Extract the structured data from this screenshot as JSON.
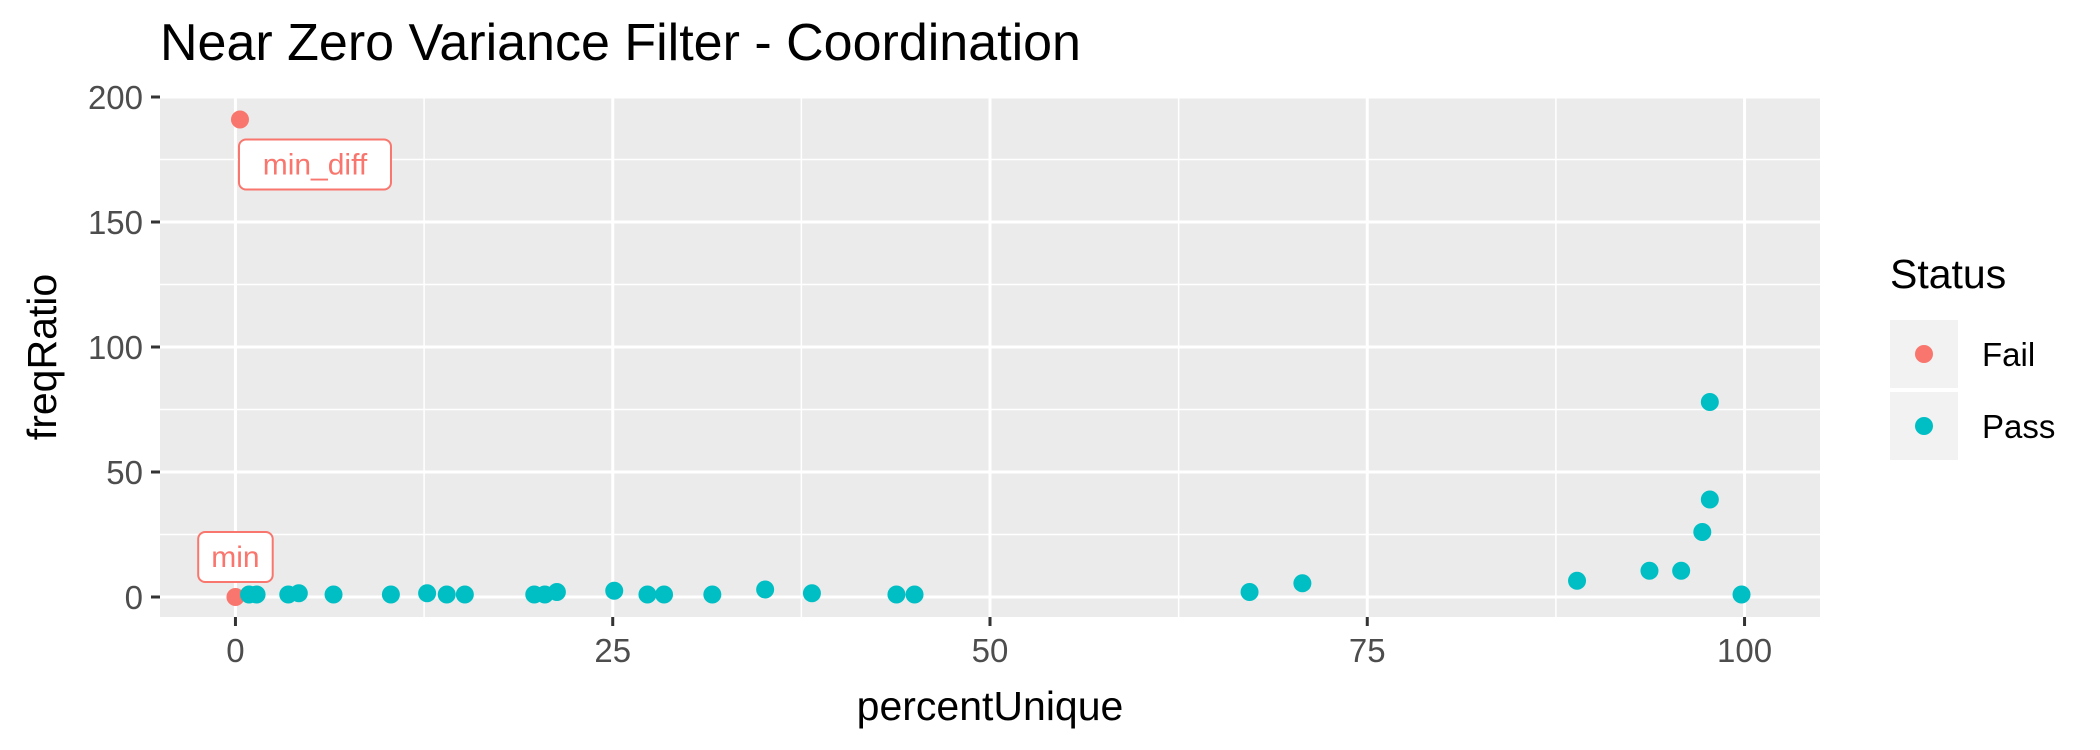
{
  "chart_data": {
    "type": "scatter",
    "title": "Near Zero Variance Filter - Coordination",
    "xlabel": "percentUnique",
    "ylabel": "freqRatio",
    "xlim": [
      -5,
      105
    ],
    "ylim": [
      -8,
      200
    ],
    "xticks": [
      0,
      25,
      50,
      75,
      100
    ],
    "yticks": [
      0,
      50,
      100,
      150,
      200
    ],
    "grid": true,
    "legend": {
      "title": "Status",
      "position": "right",
      "entries": [
        {
          "name": "Fail",
          "color": "#F8766D"
        },
        {
          "name": "Pass",
          "color": "#00BFC4"
        }
      ]
    },
    "series": [
      {
        "name": "Fail",
        "color": "#F8766D",
        "points": [
          [
            0.3,
            191
          ],
          [
            0.0,
            0.0
          ]
        ]
      },
      {
        "name": "Pass",
        "color": "#00BFC4",
        "points": [
          [
            0.9,
            1.0
          ],
          [
            1.4,
            1.0
          ],
          [
            3.5,
            1.0
          ],
          [
            4.2,
            1.5
          ],
          [
            6.5,
            1.0
          ],
          [
            10.3,
            1.0
          ],
          [
            12.7,
            1.5
          ],
          [
            14.0,
            1.0
          ],
          [
            15.2,
            1.0
          ],
          [
            19.8,
            1.0
          ],
          [
            20.5,
            1.0
          ],
          [
            21.3,
            2.0
          ],
          [
            25.1,
            2.5
          ],
          [
            27.3,
            1.0
          ],
          [
            28.4,
            1.0
          ],
          [
            31.6,
            1.0
          ],
          [
            35.1,
            3.0
          ],
          [
            38.2,
            1.5
          ],
          [
            43.8,
            1.0
          ],
          [
            45.0,
            1.0
          ],
          [
            67.2,
            2.0
          ],
          [
            70.7,
            5.5
          ],
          [
            88.9,
            6.5
          ],
          [
            93.7,
            10.5
          ],
          [
            95.8,
            10.5
          ],
          [
            97.2,
            26.0
          ],
          [
            97.7,
            39.0
          ],
          [
            97.7,
            78.0
          ],
          [
            99.8,
            1.0
          ]
        ]
      }
    ],
    "annotations": [
      {
        "text": "min_diff",
        "x": 0.3,
        "y": 191,
        "color": "#F8766D"
      },
      {
        "text": "min",
        "x": 0.0,
        "y": 0.0,
        "color": "#F8766D"
      }
    ]
  }
}
